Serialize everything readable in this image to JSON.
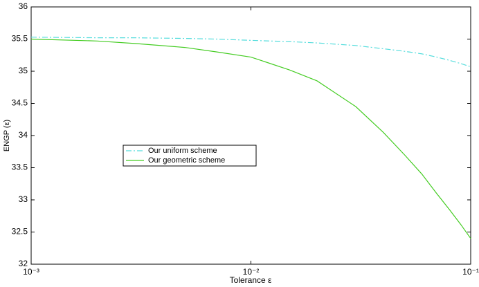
{
  "chart_data": {
    "type": "line",
    "x_label": "Tolerance ε",
    "y_label": "ENGP (ε)",
    "x": [
      0.001,
      0.002,
      0.003,
      0.005,
      0.007,
      0.01,
      0.015,
      0.02,
      0.03,
      0.04,
      0.05,
      0.06,
      0.07,
      0.08,
      0.09,
      0.1
    ],
    "series": [
      {
        "name": "Our uniform scheme",
        "color": "#55dddd",
        "dash": "dashdot",
        "values": [
          35.53,
          35.52,
          35.52,
          35.51,
          35.5,
          35.48,
          35.46,
          35.44,
          35.4,
          35.35,
          35.31,
          35.27,
          35.22,
          35.17,
          35.12,
          35.07
        ]
      },
      {
        "name": "Our geometric scheme",
        "color": "#44cc22",
        "dash": "solid",
        "values": [
          35.5,
          35.47,
          35.43,
          35.37,
          35.3,
          35.22,
          35.02,
          34.85,
          34.45,
          34.05,
          33.7,
          33.4,
          33.1,
          32.85,
          32.62,
          32.4
        ]
      }
    ],
    "xscale": "log",
    "xlim": [
      0.001,
      0.1
    ],
    "xticks": [
      {
        "value": 0.001,
        "label": "10⁻³"
      },
      {
        "value": 0.01,
        "label": "10⁻²"
      },
      {
        "value": 0.1,
        "label": "10⁻¹"
      }
    ],
    "ylim": [
      32,
      36
    ],
    "yticks": [
      32,
      32.5,
      33,
      33.5,
      34,
      34.5,
      35,
      35.5,
      36
    ],
    "grid": false,
    "legend": "center-left"
  }
}
